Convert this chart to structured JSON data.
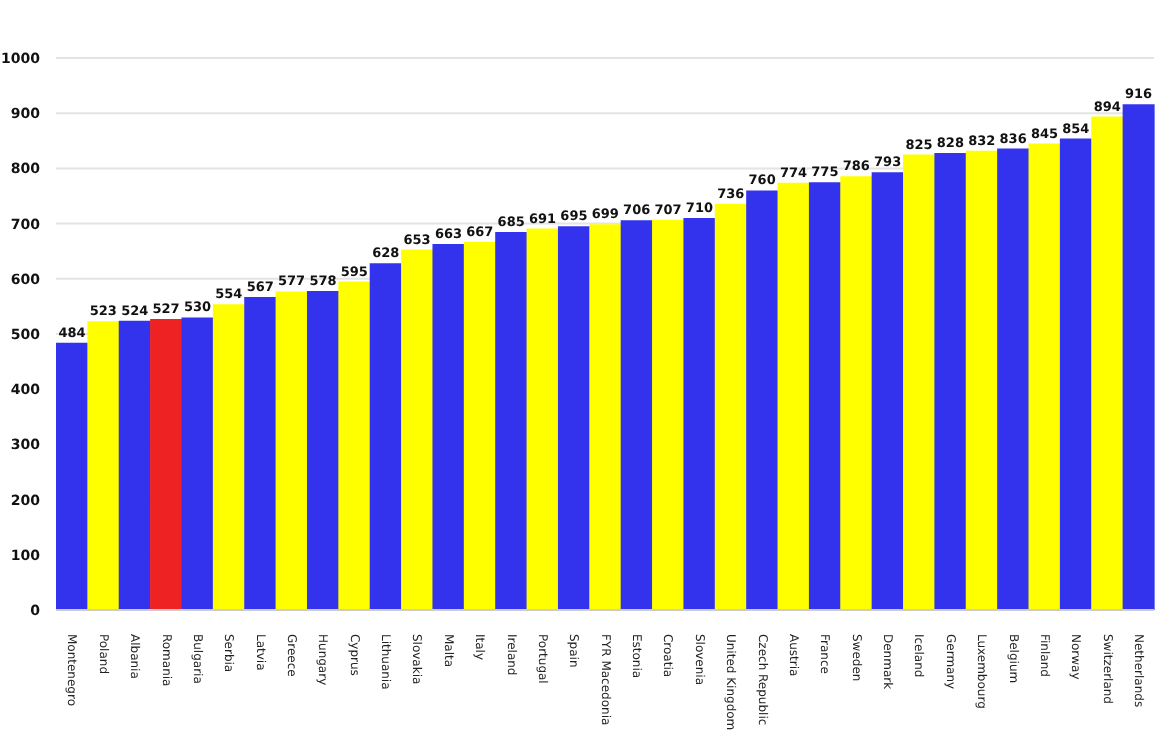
{
  "chart_data": {
    "type": "bar",
    "categories": [
      "Montenegro",
      "Poland",
      "Albania",
      "Romania",
      "Bulgaria",
      "Serbia",
      "Latvia",
      "Greece",
      "Hungary",
      "Cyprus",
      "Lithuania",
      "Slovakia",
      "Malta",
      "Italy",
      "Ireland",
      "Portugal",
      "Spain",
      "FYR Macedonia",
      "Estonia",
      "Croatia",
      "Slovenia",
      "United Kingdom",
      "Czech Republic",
      "Austria",
      "France",
      "Sweden",
      "Denmark",
      "Iceland",
      "Germany",
      "Luxembourg",
      "Belgium",
      "Finland",
      "Norway",
      "Switzerland",
      "Netherlands"
    ],
    "values": [
      484,
      523,
      524,
      527,
      530,
      554,
      567,
      577,
      578,
      595,
      628,
      653,
      663,
      667,
      685,
      691,
      695,
      699,
      706,
      707,
      710,
      736,
      760,
      774,
      775,
      786,
      793,
      825,
      828,
      832,
      836,
      845,
      854,
      894,
      916
    ],
    "colors": [
      "#3333ee",
      "#ffff00",
      "#3333ee",
      "#ee2222",
      "#3333ee",
      "#ffff00",
      "#3333ee",
      "#ffff00",
      "#3333ee",
      "#ffff00",
      "#3333ee",
      "#ffff00",
      "#3333ee",
      "#ffff00",
      "#3333ee",
      "#ffff00",
      "#3333ee",
      "#ffff00",
      "#3333ee",
      "#ffff00",
      "#3333ee",
      "#ffff00",
      "#3333ee",
      "#ffff00",
      "#3333ee",
      "#ffff00",
      "#3333ee",
      "#ffff00",
      "#3333ee",
      "#ffff00",
      "#3333ee",
      "#ffff00",
      "#3333ee",
      "#ffff00",
      "#3333ee"
    ],
    "ylim": [
      0,
      1000
    ],
    "yticks": [
      0,
      100,
      200,
      300,
      400,
      500,
      600,
      700,
      800,
      900,
      1000
    ],
    "grid": "y",
    "data_labels": true
  }
}
